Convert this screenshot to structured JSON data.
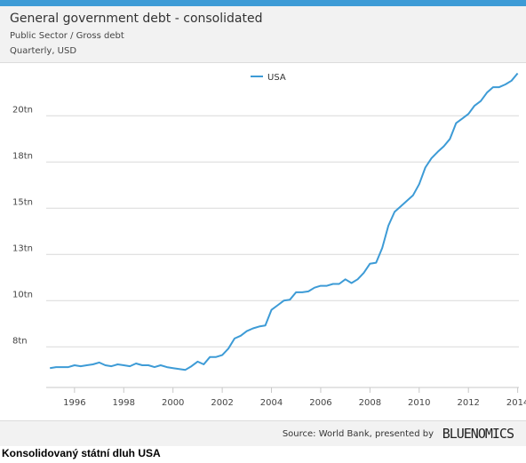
{
  "header": {
    "title": "General government debt - consolidated",
    "subtitle_sector": "Public Sector / Gross debt",
    "subtitle_freq": "Quarterly, USD"
  },
  "footer": {
    "source": "Source: World Bank, presented by",
    "brand": "BLUENOMICS"
  },
  "caption": "Konsolidovaný státní dluh USA",
  "chart_data": {
    "type": "line",
    "title": "",
    "xlabel": "",
    "ylabel": "",
    "legend_position": "top-center",
    "grid": true,
    "line_color": "#3d9bd6",
    "xlim": [
      1994.85,
      2014.05
    ],
    "ylim": [
      5.3,
      22.9
    ],
    "x_ticks": [
      1996,
      1998,
      2000,
      2002,
      2004,
      2006,
      2008,
      2010,
      2012,
      2014
    ],
    "x_tick_labels": [
      "1996",
      "1998",
      "2000",
      "2002",
      "2004",
      "2006",
      "2008",
      "2010",
      "2012",
      "2014"
    ],
    "y_ticks": [
      7.5,
      10,
      12.5,
      15,
      17.5,
      20
    ],
    "y_tick_labels": [
      "8tn",
      "10tn",
      "13tn",
      "15tn",
      "18tn",
      "20tn"
    ],
    "series": [
      {
        "name": "USA",
        "x": [
          1995.0,
          1995.25,
          1995.5,
          1995.75,
          1996.0,
          1996.25,
          1996.5,
          1996.75,
          1997.0,
          1997.25,
          1997.5,
          1997.75,
          1998.0,
          1998.25,
          1998.5,
          1998.75,
          1999.0,
          1999.25,
          1999.5,
          1999.75,
          2000.0,
          2000.25,
          2000.5,
          2000.75,
          2001.0,
          2001.25,
          2001.5,
          2001.75,
          2002.0,
          2002.25,
          2002.5,
          2002.75,
          2003.0,
          2003.25,
          2003.5,
          2003.75,
          2004.0,
          2004.25,
          2004.5,
          2004.75,
          2005.0,
          2005.25,
          2005.5,
          2005.75,
          2006.0,
          2006.25,
          2006.5,
          2006.75,
          2007.0,
          2007.25,
          2007.5,
          2007.75,
          2008.0,
          2008.25,
          2008.5,
          2008.75,
          2009.0,
          2009.25,
          2009.5,
          2009.75,
          2010.0,
          2010.25,
          2010.5,
          2010.75,
          2011.0,
          2011.25,
          2011.5,
          2011.75,
          2012.0,
          2012.25,
          2012.5,
          2012.75,
          2013.0,
          2013.25,
          2013.5,
          2013.75,
          2014.0
        ],
        "values": [
          6.35,
          6.4,
          6.4,
          6.4,
          6.5,
          6.45,
          6.5,
          6.55,
          6.65,
          6.5,
          6.45,
          6.55,
          6.5,
          6.45,
          6.6,
          6.5,
          6.5,
          6.4,
          6.5,
          6.4,
          6.35,
          6.3,
          6.25,
          6.45,
          6.7,
          6.55,
          6.95,
          6.95,
          7.05,
          7.4,
          7.95,
          8.1,
          8.35,
          8.5,
          8.6,
          8.65,
          9.5,
          9.75,
          10.0,
          10.05,
          10.45,
          10.45,
          10.5,
          10.7,
          10.8,
          10.8,
          10.9,
          10.9,
          11.15,
          10.95,
          11.15,
          11.5,
          12.0,
          12.05,
          12.85,
          14.05,
          14.8,
          15.1,
          15.4,
          15.7,
          16.3,
          17.2,
          17.7,
          18.05,
          18.35,
          18.75,
          19.6,
          19.85,
          20.1,
          20.55,
          20.8,
          21.25,
          21.55,
          21.55,
          21.7,
          21.9,
          22.3
        ]
      }
    ]
  }
}
